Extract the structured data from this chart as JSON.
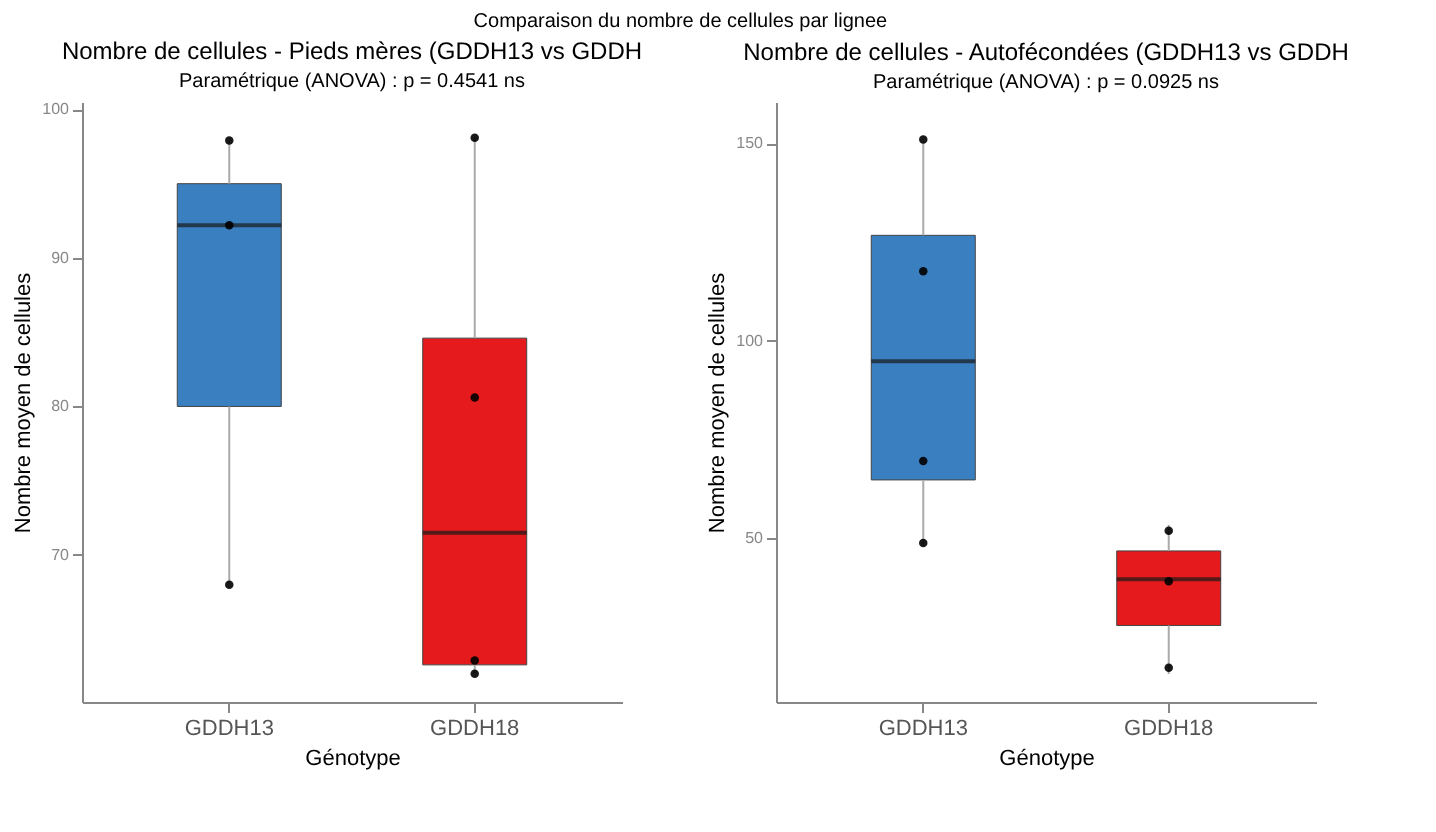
{
  "chart_data": [
    {
      "type": "box",
      "title": "Nombre de cellules - Pieds mères (GDDH13 vs GDDH",
      "subtitle": "Paramétrique (ANOVA) : p = 0.4541 ns",
      "xlabel": "Génotype",
      "ylabel": "Nombre moyen de cellules",
      "categories": [
        "GDDH13",
        "GDDH18"
      ],
      "colors": [
        "#3a7fc0",
        "#e41a1c"
      ],
      "boxes": [
        {
          "low": 68.1,
          "q1": 80.0,
          "median": 92.2,
          "q3": 95.0,
          "high": 97.9
        },
        {
          "low": 62.0,
          "q1": 62.6,
          "median": 71.5,
          "q3": 84.6,
          "high": 98.1
        }
      ],
      "series": [
        {
          "type": "scatter",
          "color": "#000000",
          "x": [
            "GDDH13",
            "GDDH13",
            "GDDH13",
            "GDDH18",
            "GDDH18",
            "GDDH18",
            "GDDH18"
          ],
          "values": [
            97.9,
            92.2,
            68.0,
            98.1,
            80.6,
            62.9,
            62.0
          ]
        }
      ],
      "ylim": [
        60.1,
        100.5
      ],
      "yticks": [
        100,
        90,
        80,
        70
      ],
      "grid": false,
      "annotations": [
        "Comparaison du nombre de cellules par lignee"
      ]
    },
    {
      "type": "box",
      "title": "Nombre de cellules - Autofécondées (GDDH13 vs GDDH",
      "subtitle": "Paramétrique (ANOVA) : p = 0.0925 ns",
      "xlabel": "Génotype",
      "ylabel": "Nombre moyen de cellules",
      "categories": [
        "GDDH13",
        "GDDH18"
      ],
      "colors": [
        "#3a7fc0",
        "#e41a1c"
      ],
      "boxes": [
        {
          "low": 48.2,
          "q1": 64.7,
          "median": 94.8,
          "q3": 126.7,
          "high": 150.3
        },
        {
          "low": 15.5,
          "q1": 27.8,
          "median": 39.5,
          "q3": 46.7,
          "high": 53.3
        }
      ],
      "series": [
        {
          "type": "scatter",
          "color": "#000000",
          "x": [
            "GDDH13",
            "GDDH13",
            "GDDH13",
            "GDDH13",
            "GDDH18",
            "GDDH18",
            "GDDH18"
          ],
          "values": [
            151.0,
            117.6,
            69.5,
            48.7,
            51.8,
            39.0,
            17.1
          ]
        }
      ],
      "ylim": [
        8.4,
        160.5
      ],
      "yticks": [
        150,
        100,
        50
      ],
      "grid": false
    }
  ]
}
